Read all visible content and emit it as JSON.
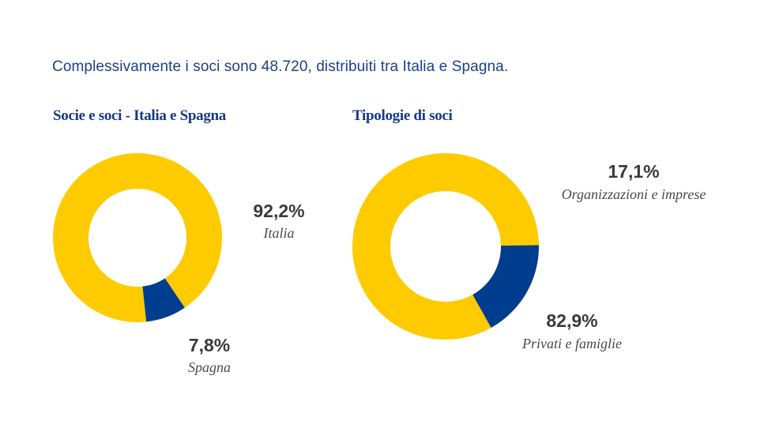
{
  "intro_text": "Complessivamente i soci sono 48.720, distribuiti tra Italia e Spagna.",
  "colors": {
    "primary": "#fecb00",
    "secondary": "#003d8f",
    "title": "#163a86"
  },
  "chart_data": [
    {
      "type": "pie",
      "title": "Socie e soci - Italia e Spagna",
      "slices": [
        {
          "label": "Italia",
          "value": 92.2,
          "value_label": "92,2%",
          "color": "#fecb00"
        },
        {
          "label": "Spagna",
          "value": 7.8,
          "value_label": "7,8%",
          "color": "#003d8f"
        }
      ]
    },
    {
      "type": "pie",
      "title": "Tipologie di soci",
      "slices": [
        {
          "label": "Privati e famiglie",
          "value": 82.9,
          "value_label": "82,9%",
          "color": "#fecb00"
        },
        {
          "label": "Organizzazioni e imprese",
          "value": 17.1,
          "value_label": "17,1%",
          "color": "#003d8f"
        }
      ]
    }
  ]
}
